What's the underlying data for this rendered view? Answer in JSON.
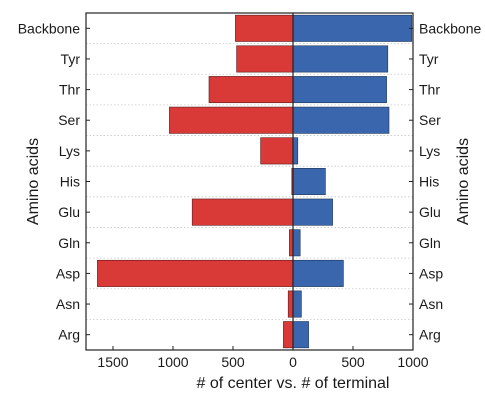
{
  "chart_data": {
    "type": "bar",
    "orientation": "horizontal-diverging",
    "categories": [
      "Backbone",
      "Tyr",
      "Thr",
      "Ser",
      "Lys",
      "His",
      "Glu",
      "Gln",
      "Asp",
      "Asn",
      "Arg"
    ],
    "series": [
      {
        "values": [
          480,
          470,
          700,
          1030,
          270,
          10,
          840,
          30,
          1630,
          40,
          80
        ],
        "color": "#d93a38",
        "direction": "left"
      },
      {
        "values": [
          990,
          790,
          780,
          800,
          40,
          270,
          330,
          60,
          420,
          70,
          130
        ],
        "color": "#3a66ad",
        "direction": "right"
      }
    ],
    "xlabel": "# of center vs. # of terminal",
    "ylabel_left": "Amino acids",
    "ylabel_right": "Amino acids",
    "xticks_left": [
      1500,
      1000,
      500
    ],
    "xticks_right": [
      0,
      500,
      1000
    ],
    "xlim_left": [
      1650,
      0
    ],
    "xlim_right": [
      0,
      1000
    ],
    "grid": "row separators (dotted)",
    "legend": "none"
  }
}
